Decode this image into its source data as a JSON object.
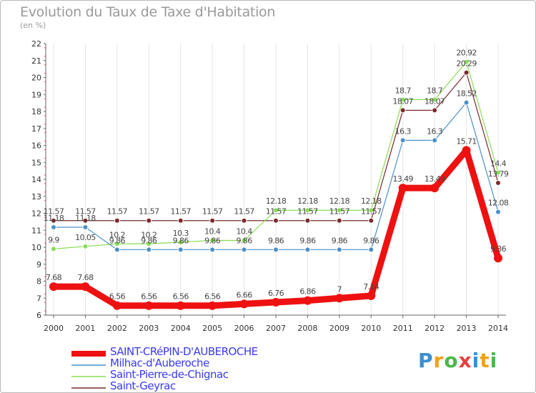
{
  "chart_data": {
    "type": "line",
    "title": "Evolution du Taux de Taxe d'Habitation",
    "subtitle": "(en %)",
    "x": [
      "2000",
      "2001",
      "2002",
      "2003",
      "2004",
      "2005",
      "2006",
      "2007",
      "2008",
      "2009",
      "2010",
      "2011",
      "2012",
      "2013",
      "2014"
    ],
    "ylim": [
      6,
      22
    ],
    "yticks": [
      "6",
      "7",
      "8",
      "9",
      "10",
      "11",
      "12",
      "13",
      "14",
      "15",
      "16",
      "17",
      "18",
      "19",
      "20",
      "21",
      "22"
    ],
    "series": [
      {
        "name": "SAINT-CRéPIN-D'AUBEROCHE",
        "color": "#ee1111",
        "values": [
          7.68,
          7.68,
          6.56,
          6.56,
          6.56,
          6.56,
          6.66,
          6.76,
          6.86,
          7,
          7.14,
          13.49,
          13.49,
          15.71,
          9.36
        ],
        "labels": [
          "7.68",
          "7.68",
          "6.56",
          "6.56",
          "6.56",
          "6.56",
          "6.66",
          "6.76",
          "6.86",
          "7",
          "7.14",
          "13.49",
          "13.49",
          "15.71",
          "9.36"
        ]
      },
      {
        "name": "Milhac-d'Auberoche",
        "color": "#4a90c8",
        "values": [
          11.18,
          11.18,
          9.86,
          9.86,
          9.86,
          9.86,
          9.86,
          9.86,
          9.86,
          9.86,
          9.86,
          16.3,
          16.3,
          18.52,
          12.08
        ],
        "labels": [
          "11.18",
          "11.18",
          "9.86",
          "9.86",
          "9.86",
          "9.86",
          "9.86",
          "9.86",
          "9.86",
          "9.86",
          "9.86",
          "16.3",
          "16.3",
          "18.52",
          "12.08"
        ]
      },
      {
        "name": "Saint-Pierre-de-Chignac",
        "color": "#88dd55",
        "values": [
          9.9,
          10.05,
          10.2,
          10.2,
          10.3,
          10.4,
          10.4,
          12.18,
          12.18,
          12.18,
          12.18,
          18.7,
          18.7,
          20.92,
          14.4
        ],
        "labels": [
          "9.9",
          "10.05",
          "10.2",
          "10.2",
          "10.3",
          "10.4",
          "10.4",
          "12.18",
          "12.18",
          "12.18",
          "12.18",
          "18.7",
          "18.7",
          "20.92",
          "14.4"
        ]
      },
      {
        "name": "Saint-Geyrac",
        "color": "#7a2a2a",
        "values": [
          11.57,
          11.57,
          11.57,
          11.57,
          11.57,
          11.57,
          11.57,
          11.57,
          11.57,
          11.57,
          11.57,
          18.07,
          18.07,
          20.29,
          13.79
        ],
        "labels": [
          "11.57",
          "11.57",
          "11.57",
          "11.57",
          "11.57",
          "11.57",
          "11.57",
          "11.57",
          "11.57",
          "11.57",
          "11.57",
          "18.07",
          "18.07",
          "20.29",
          "13.79"
        ]
      }
    ]
  },
  "logo": {
    "letters": [
      "P",
      "r",
      "o",
      "x",
      "i",
      "t",
      "i"
    ]
  }
}
